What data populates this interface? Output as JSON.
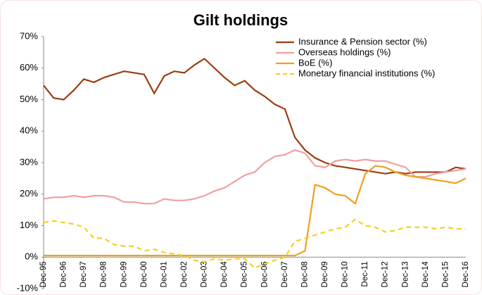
{
  "chart_data": {
    "type": "line",
    "title": "Gilt holdings",
    "categories": [
      "Dec-95",
      null,
      "Dec-96",
      null,
      "Dec-97",
      null,
      "Dec-98",
      null,
      "Dec-99",
      null,
      "Dec-00",
      null,
      "Dec-01",
      null,
      "Dec-02",
      null,
      "Dec-03",
      null,
      "Dec-04",
      null,
      "Dec-05",
      null,
      "Dec-06",
      null,
      "Dec-07",
      null,
      "Dec-08",
      null,
      "Dec-09",
      null,
      "Dec-10",
      null,
      "Dec-11",
      null,
      "Dec-12",
      null,
      "Dec-13",
      null,
      "Dec-14",
      null,
      "Dec-15",
      null,
      "Dec-16"
    ],
    "series": [
      {
        "name": "Insurance & Pension sector (%)",
        "color": "#9b3d10",
        "dashed": false,
        "values": [
          54.5,
          50.5,
          50,
          53,
          56.5,
          55.5,
          57,
          58,
          59,
          58.5,
          58,
          52,
          57.5,
          59,
          58.5,
          61,
          63,
          60,
          57,
          54.5,
          56,
          53,
          51,
          48.5,
          47,
          38,
          34,
          31.5,
          30,
          29,
          28.5,
          28,
          27.5,
          27,
          26.5,
          27,
          26.5,
          27,
          27,
          27,
          27,
          28.5,
          28
        ]
      },
      {
        "name": "Overseas holdings (%)",
        "color": "#f0a0a0",
        "dashed": false,
        "values": [
          18.5,
          19,
          19,
          19.5,
          19,
          19.5,
          19.5,
          19,
          17.5,
          17.5,
          17,
          17,
          18.5,
          18,
          18,
          18.5,
          19.5,
          21,
          22,
          24,
          26,
          27,
          30,
          32,
          32.5,
          34,
          33,
          29,
          28.5,
          30.5,
          31,
          30.5,
          31,
          30.5,
          30.5,
          29.5,
          28.5,
          25.5,
          25.5,
          26.5,
          27,
          27.5,
          28
        ]
      },
      {
        "name": "BoE (%)",
        "color": "#f0a020",
        "dashed": false,
        "values": [
          0.5,
          0.5,
          0.5,
          0.5,
          0.5,
          0.5,
          0.5,
          0.5,
          0.5,
          0.5,
          0.5,
          0.5,
          0.5,
          0.5,
          0.5,
          0.5,
          0.5,
          0.5,
          0.5,
          0.5,
          0.5,
          0.5,
          0.5,
          0.5,
          0.5,
          0.5,
          2,
          23,
          22,
          20,
          19.5,
          17,
          26.5,
          29,
          28.5,
          27,
          26,
          25.5,
          25,
          24.5,
          24,
          23.5,
          25
        ]
      },
      {
        "name": "Monetary financial institutions (%)",
        "color": "#f5d020",
        "dashed": true,
        "values": [
          11,
          11.5,
          11,
          10.5,
          9.5,
          6,
          6,
          4,
          3.5,
          3.5,
          2,
          2.5,
          1.5,
          1,
          0.5,
          -1,
          -1.5,
          -0.5,
          -1,
          -0.5,
          -0.5,
          -3.5,
          -2,
          -1,
          0,
          5,
          6,
          7,
          8,
          9,
          9.5,
          12,
          10,
          9.5,
          8,
          8.5,
          9.5,
          9.5,
          9.5,
          9,
          9.5,
          9,
          9
        ]
      }
    ],
    "ylim": [
      -10,
      70
    ],
    "yticks": [
      {
        "value": -10,
        "label": "-10%"
      },
      {
        "value": 0,
        "label": "0%"
      },
      {
        "value": 10,
        "label": "10%"
      },
      {
        "value": 20,
        "label": "20%"
      },
      {
        "value": 30,
        "label": "30%"
      },
      {
        "value": 40,
        "label": "40%"
      },
      {
        "value": 50,
        "label": "50%"
      },
      {
        "value": 60,
        "label": "60%"
      },
      {
        "value": 70,
        "label": "70%"
      }
    ],
    "grid": false,
    "legend": "top-right"
  }
}
